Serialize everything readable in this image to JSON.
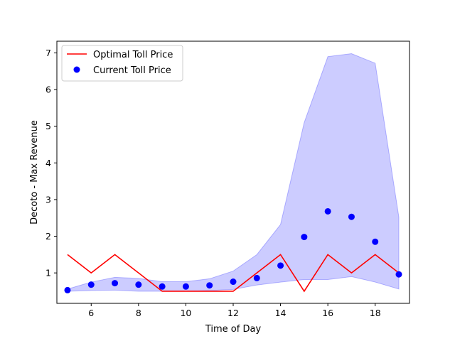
{
  "chart_data": {
    "type": "line",
    "xlabel": "Time of Day",
    "ylabel": "Decoto - Max Revenue",
    "xlim": [
      4.55,
      19.45
    ],
    "ylim": [
      0.17,
      7.32
    ],
    "xticks": [
      6,
      8,
      10,
      12,
      14,
      16,
      18
    ],
    "yticks": [
      1,
      2,
      3,
      4,
      5,
      6,
      7
    ],
    "grid": false,
    "legend_position": "top-left",
    "x": [
      5,
      6,
      7,
      8,
      9,
      10,
      11,
      12,
      13,
      14,
      15,
      16,
      17,
      18,
      19
    ],
    "series": [
      {
        "name": "Optimal Toll Price",
        "kind": "line",
        "color": "#ff0000",
        "values": [
          1.5,
          1.0,
          1.5,
          1.0,
          0.5,
          0.5,
          0.5,
          0.5,
          1.0,
          1.5,
          0.5,
          1.5,
          1.0,
          1.5,
          1.0
        ]
      },
      {
        "name": "Current Toll Price",
        "kind": "scatter",
        "color": "#0000ff",
        "values": [
          0.53,
          0.68,
          0.72,
          0.68,
          0.63,
          0.63,
          0.66,
          0.76,
          0.86,
          1.2,
          1.98,
          2.68,
          2.53,
          1.85,
          0.96
        ]
      }
    ],
    "band": {
      "color": "#0000ff",
      "opacity": 0.2,
      "lower": [
        0.5,
        0.52,
        0.53,
        0.5,
        0.5,
        0.5,
        0.52,
        0.55,
        0.67,
        0.75,
        0.82,
        0.82,
        0.9,
        0.75,
        0.56
      ],
      "upper": [
        0.56,
        0.75,
        0.88,
        0.85,
        0.76,
        0.76,
        0.84,
        1.05,
        1.5,
        2.32,
        5.1,
        6.9,
        6.98,
        6.72,
        2.52
      ]
    }
  }
}
